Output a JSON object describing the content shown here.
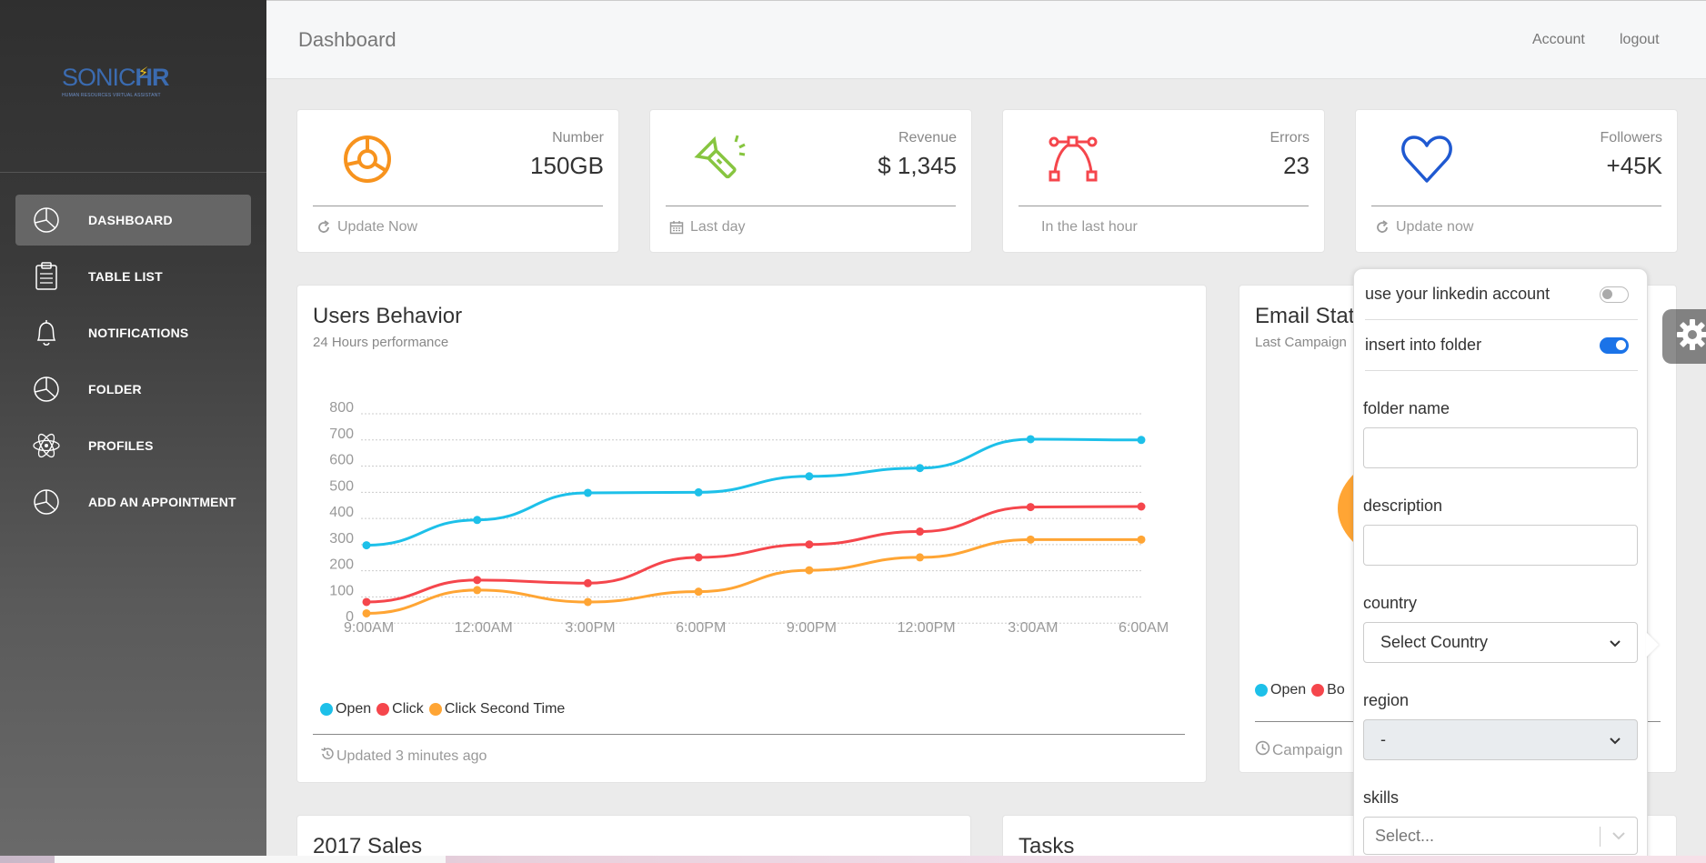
{
  "app": {
    "logo_sonic": "SONIC",
    "logo_hr": "HR",
    "logo_tagline": "HUMAN RESOURCES VIRTUAL ASSISTANT"
  },
  "sidebar": {
    "items": [
      {
        "label": "DASHBOARD",
        "icon": "pie-chart-icon",
        "active": true
      },
      {
        "label": "TABLE LIST",
        "icon": "clipboard-icon",
        "active": false
      },
      {
        "label": "NOTIFICATIONS",
        "icon": "bell-icon",
        "active": false
      },
      {
        "label": "FOLDER",
        "icon": "pie-chart-icon",
        "active": false
      },
      {
        "label": "PROFILES",
        "icon": "atom-icon",
        "active": false
      },
      {
        "label": "ADD AN APPOINTMENT",
        "icon": "pie-chart-icon",
        "active": false
      }
    ]
  },
  "header": {
    "title": "Dashboard",
    "account": "Account",
    "logout": "logout"
  },
  "stats": [
    {
      "label": "Number",
      "value": "150GB",
      "footer": "Update Now",
      "footer_icon": "refresh-icon",
      "icon": "chart-icon",
      "color": "#f7931e"
    },
    {
      "label": "Revenue",
      "value": "$ 1,345",
      "footer": "Last day",
      "footer_icon": "calendar-icon",
      "icon": "flashlight-icon",
      "color": "#87c540"
    },
    {
      "label": "Errors",
      "value": "23",
      "footer": "In the last hour",
      "footer_icon": "",
      "icon": "vector-icon",
      "color": "#f5464c"
    },
    {
      "label": "Followers",
      "value": "+45K",
      "footer": "Update now",
      "footer_icon": "refresh-icon",
      "icon": "heart-icon",
      "color": "#1f59d1"
    }
  ],
  "users_behavior": {
    "title": "Users Behavior",
    "subtitle": "24 Hours performance",
    "footer": "Updated 3 minutes ago"
  },
  "email_stats": {
    "title": "Email Stat",
    "subtitle": "Last Campaign",
    "legend_open": "Open",
    "legend_bo": "Bo",
    "footer": "Campaign"
  },
  "chart_data": {
    "type": "line",
    "categories": [
      "9:00AM",
      "12:00AM",
      "3:00PM",
      "6:00PM",
      "9:00PM",
      "12:00PM",
      "3:00AM",
      "6:00AM"
    ],
    "y_ticks": [
      "800",
      "700",
      "600",
      "500",
      "400",
      "300",
      "200",
      "100",
      "0"
    ],
    "ylim": [
      0,
      800
    ],
    "grid": true,
    "legend_placement": "bottom-left",
    "series": [
      {
        "name": "Open",
        "color": "#1dc0e9",
        "values": [
          287,
          385,
          490,
          492,
          554,
          586,
          698,
          695
        ]
      },
      {
        "name": "Click",
        "color": "#f5464c",
        "values": [
          67,
          152,
          140,
          240,
          290,
          340,
          435,
          437
        ]
      },
      {
        "name": "Click Second Time",
        "color": "#ffa534",
        "values": [
          23,
          113,
          67,
          107,
          190,
          240,
          309,
          309
        ]
      }
    ]
  },
  "settings_form": {
    "linkedin_label": "use your linkedin account",
    "linkedin_on": false,
    "folder_label": "insert into folder",
    "folder_on": true,
    "folder_name_label": "folder name",
    "folder_name_value": "",
    "description_label": "description",
    "description_value": "",
    "country_label": "country",
    "country_value": "Select Country",
    "region_label": "region",
    "region_value": "-",
    "skills_label": "skills",
    "skills_placeholder": "Select..."
  },
  "bottom": {
    "sales_title": "2017 Sales",
    "tasks_title": "Tasks"
  }
}
